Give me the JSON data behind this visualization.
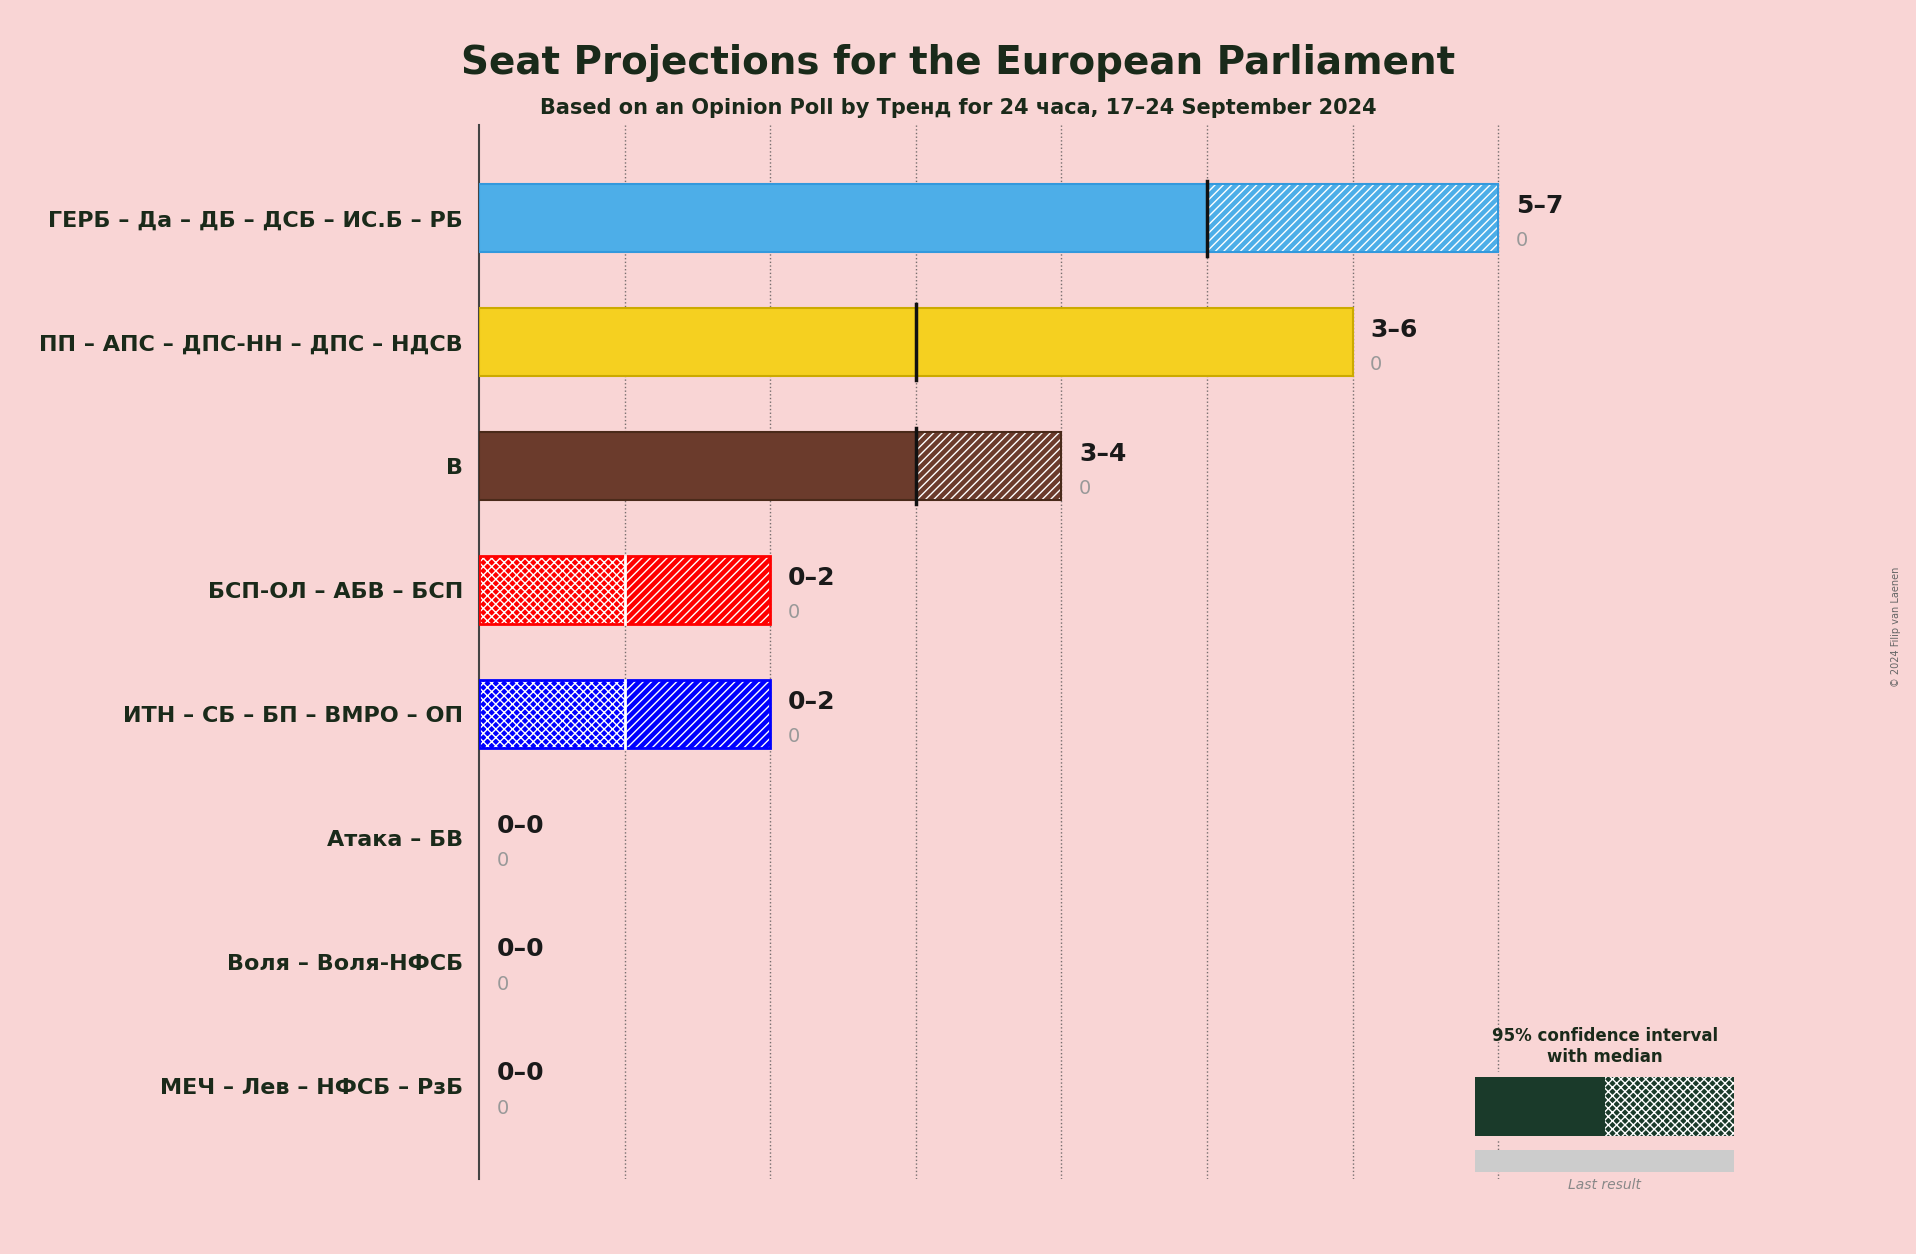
{
  "title": "Seat Projections for the European Parliament",
  "subtitle": "Based on an Opinion Poll by Тренд for 24 часа, 17–24 September 2024",
  "copyright": "© 2024 Filip van Laenen",
  "background_color": "#f9d5d5",
  "parties": [
    "ГЕРБ – Да – ДБ – ДСБ – ИС.Б – РБ",
    "ПП – АПС – ДПС-НН – ДПС – НДСВ",
    "В",
    "БСП-ОЛ – АБВ – БСП",
    "ИТН – СБ – БП – ВМРО – ОП",
    "Атака – БВ",
    "Воля – Воля-НФСБ",
    "МЕЧ – Лев – НФСБ – РзБ"
  ],
  "median_values": [
    5,
    3,
    3,
    1,
    1,
    0,
    0,
    0
  ],
  "high_values": [
    7,
    6,
    4,
    2,
    2,
    0,
    0,
    0
  ],
  "labels": [
    "5–7",
    "3–6",
    "3–4",
    "0–2",
    "0–2",
    "0–0",
    "0–0",
    "0–0"
  ],
  "solid_colors": [
    "#4daee8",
    "#f5d020",
    "#6b3b2c",
    "#ff0000",
    "#0000ff",
    "#f9d5d5",
    "#f9d5d5",
    "#f9d5d5"
  ],
  "bar_height": 0.55,
  "xlim_max": 7.5,
  "legend_solid_color": "#1a3a2a",
  "figsize": [
    19.16,
    12.54
  ],
  "dpi": 100,
  "title_fontsize": 28,
  "subtitle_fontsize": 15,
  "label_fontsize": 18,
  "party_fontsize": 16
}
